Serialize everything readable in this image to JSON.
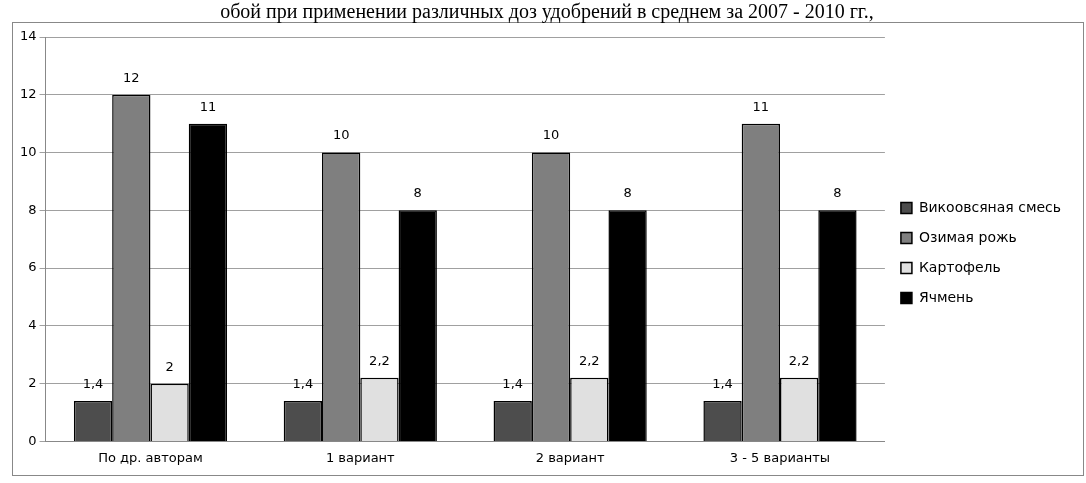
{
  "chart_data": {
    "type": "bar",
    "title": "обой при применении различных доз удобрений в среднем за 2007 - 2010 гг.,",
    "categories": [
      "По др. авторам",
      "1 вариант",
      "2 вариант",
      "3 - 5 варианты"
    ],
    "series": [
      {
        "name": "Викоовсяная смесь",
        "color": "#4d4d4d",
        "values": [
          1.4,
          1.4,
          1.4,
          1.4
        ],
        "value_labels": [
          "1,4",
          "1,4",
          "1,4",
          "1,4"
        ]
      },
      {
        "name": "Озимая рожь",
        "color": "#7f7f7f",
        "values": [
          12,
          10,
          10,
          11
        ],
        "value_labels": [
          "12",
          "10",
          "10",
          "11"
        ]
      },
      {
        "name": "Картофель",
        "color": "#e0e0e0",
        "values": [
          2,
          2.2,
          2.2,
          2.2
        ],
        "value_labels": [
          "2",
          "2,2",
          "2,2",
          "2,2"
        ]
      },
      {
        "name": "Ячмень",
        "color": "#000000",
        "values": [
          11,
          8,
          8,
          8
        ],
        "value_labels": [
          "11",
          "8",
          "8",
          "8"
        ]
      }
    ],
    "ylim": [
      0,
      14
    ],
    "yticks": [
      0,
      2,
      4,
      6,
      8,
      10,
      12,
      14
    ],
    "grid": "y",
    "legend": "right"
  }
}
